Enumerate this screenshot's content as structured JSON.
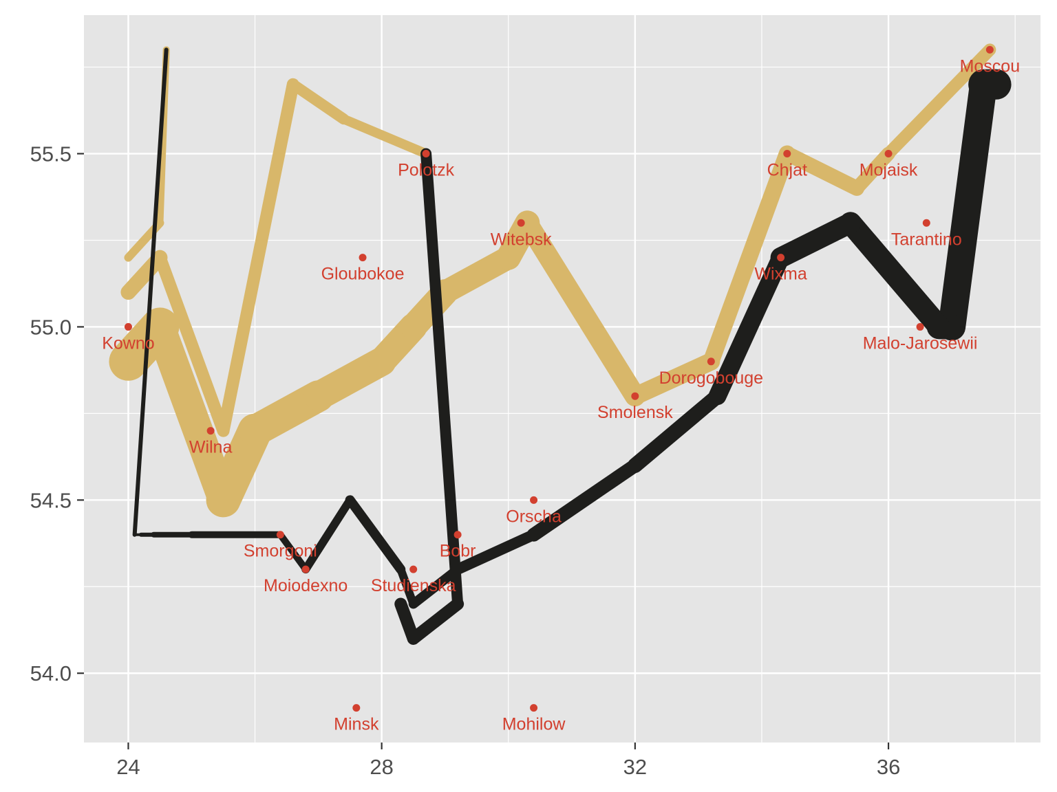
{
  "chart_data": {
    "type": "path",
    "title": "",
    "xlabel": "",
    "ylabel": "",
    "xlim": [
      23.3,
      38.4
    ],
    "ylim": [
      53.8,
      55.9
    ],
    "x_ticks": [
      24,
      28,
      32,
      36
    ],
    "y_ticks": [
      54.0,
      54.5,
      55.0,
      55.5
    ],
    "grid": true,
    "colors": {
      "panel": "#e5e5e5",
      "grid_major": "#ffffff",
      "advance": "#d8b76a",
      "retreat": "#1e1e1c",
      "city": "#d2402f",
      "tick_text": "#4d4d4d"
    },
    "advance_segments": [
      [
        24.0,
        54.9,
        24.5,
        55.0
      ],
      [
        24.5,
        55.0,
        25.5,
        54.5
      ],
      [
        25.5,
        54.5,
        26.0,
        54.7
      ],
      [
        26.0,
        54.7,
        27.0,
        54.8
      ],
      [
        27.0,
        54.8,
        28.0,
        54.9
      ],
      [
        28.0,
        54.9,
        28.5,
        55.0
      ],
      [
        28.5,
        55.0,
        29.0,
        55.1
      ],
      [
        29.0,
        55.1,
        30.0,
        55.2
      ],
      [
        30.0,
        55.2,
        30.3,
        55.3
      ],
      [
        30.3,
        55.3,
        32.0,
        54.8
      ],
      [
        32.0,
        54.8,
        33.2,
        54.9
      ],
      [
        33.2,
        54.9,
        34.4,
        55.5
      ],
      [
        34.4,
        55.5,
        35.5,
        55.4
      ],
      [
        35.5,
        55.4,
        36.0,
        55.5
      ],
      [
        36.0,
        55.5,
        37.6,
        55.8
      ],
      [
        24.0,
        55.1,
        24.5,
        55.2
      ],
      [
        24.5,
        55.2,
        25.5,
        54.7
      ],
      [
        25.5,
        54.7,
        26.6,
        55.7
      ],
      [
        26.6,
        55.7,
        27.4,
        55.6
      ],
      [
        27.4,
        55.6,
        28.7,
        55.5
      ],
      [
        24.0,
        55.2,
        24.5,
        55.3
      ],
      [
        24.5,
        55.3,
        24.6,
        55.8
      ]
    ],
    "advance_widths": [
      56,
      44,
      50,
      46,
      42,
      40,
      38,
      34,
      36,
      30,
      26,
      24,
      22,
      20,
      18,
      22,
      18,
      18,
      16,
      14,
      12,
      10
    ],
    "retreat_segments": [
      [
        37.7,
        55.7,
        37.5,
        55.7
      ],
      [
        37.5,
        55.7,
        37.0,
        55.0
      ],
      [
        37.0,
        55.0,
        36.8,
        55.0
      ],
      [
        36.8,
        55.0,
        35.4,
        55.3
      ],
      [
        35.4,
        55.3,
        34.3,
        55.2
      ],
      [
        34.3,
        55.2,
        33.3,
        54.8
      ],
      [
        33.3,
        54.8,
        32.0,
        54.6
      ],
      [
        32.0,
        54.6,
        30.4,
        54.4
      ],
      [
        30.4,
        54.4,
        29.2,
        54.3
      ],
      [
        29.2,
        54.3,
        28.5,
        54.2
      ],
      [
        28.5,
        54.2,
        28.3,
        54.3
      ],
      [
        28.3,
        54.3,
        27.5,
        54.5
      ],
      [
        27.5,
        54.5,
        26.8,
        54.3
      ],
      [
        26.8,
        54.3,
        26.4,
        54.4
      ],
      [
        26.4,
        54.4,
        25.0,
        54.4
      ],
      [
        25.0,
        54.4,
        24.4,
        54.4
      ],
      [
        24.4,
        54.4,
        24.2,
        54.4
      ],
      [
        24.2,
        54.4,
        24.1,
        54.4
      ],
      [
        28.7,
        55.5,
        29.2,
        54.2
      ],
      [
        29.2,
        54.2,
        28.5,
        54.1
      ],
      [
        28.5,
        54.1,
        28.3,
        54.2
      ],
      [
        24.1,
        54.4,
        24.6,
        55.8
      ]
    ],
    "retreat_widths": [
      44,
      40,
      36,
      32,
      30,
      26,
      22,
      20,
      16,
      14,
      12,
      14,
      12,
      10,
      10,
      8,
      6,
      4,
      16,
      18,
      18,
      6
    ],
    "cities": [
      {
        "name": "Kowno",
        "lon": 24.0,
        "lat": 55.0
      },
      {
        "name": "Wilna",
        "lon": 25.3,
        "lat": 54.7
      },
      {
        "name": "Smorgoni",
        "lon": 26.4,
        "lat": 54.4
      },
      {
        "name": "Moiodexno",
        "lon": 26.8,
        "lat": 54.3
      },
      {
        "name": "Gloubokoe",
        "lon": 27.7,
        "lat": 55.2
      },
      {
        "name": "Minsk",
        "lon": 27.6,
        "lat": 53.9
      },
      {
        "name": "Studienska",
        "lon": 28.5,
        "lat": 54.3
      },
      {
        "name": "Polotzk",
        "lon": 28.7,
        "lat": 55.5
      },
      {
        "name": "Bobr",
        "lon": 29.2,
        "lat": 54.4
      },
      {
        "name": "Witebsk",
        "lon": 30.2,
        "lat": 55.3
      },
      {
        "name": "Orscha",
        "lon": 30.4,
        "lat": 54.5
      },
      {
        "name": "Mohilow",
        "lon": 30.4,
        "lat": 53.9
      },
      {
        "name": "Smolensk",
        "lon": 32.0,
        "lat": 54.8
      },
      {
        "name": "Dorogobouge",
        "lon": 33.2,
        "lat": 54.9
      },
      {
        "name": "Wixma",
        "lon": 34.3,
        "lat": 55.2
      },
      {
        "name": "Chjat",
        "lon": 34.4,
        "lat": 55.5
      },
      {
        "name": "Mojaisk",
        "lon": 36.0,
        "lat": 55.5
      },
      {
        "name": "Moscou",
        "lon": 37.6,
        "lat": 55.8
      },
      {
        "name": "Tarantino",
        "lon": 36.6,
        "lat": 55.3
      },
      {
        "name": "Malo-Jarosewii",
        "lon": 36.5,
        "lat": 55.0
      }
    ]
  }
}
